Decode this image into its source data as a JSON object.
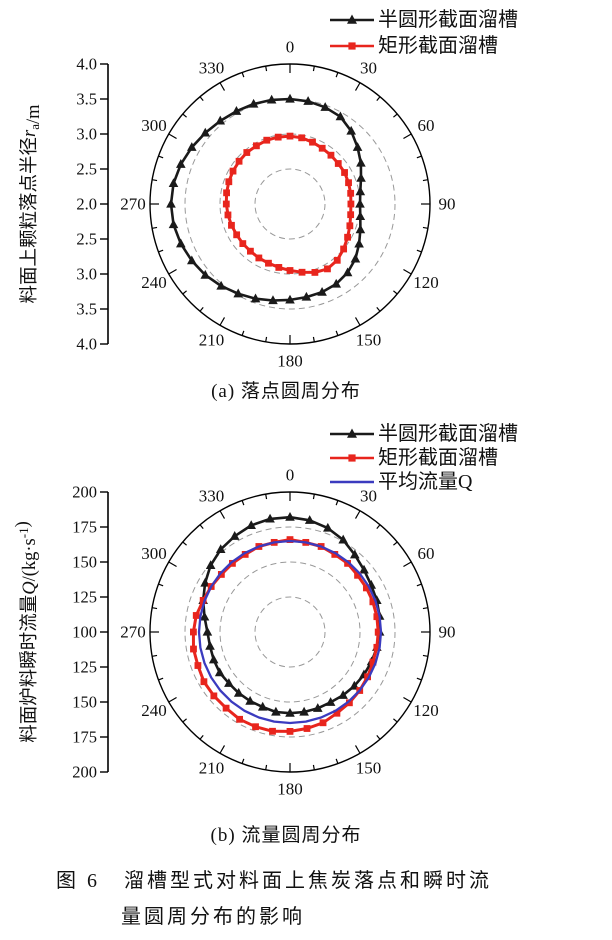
{
  "figure": {
    "label": "图 6",
    "line1": "溜槽型式对料面上焦炭落点和瞬时流",
    "line2": "量圆周分布的影响"
  },
  "colors": {
    "black": "#1a1a1a",
    "red": "#e8251d",
    "blue": "#3b3bbf",
    "grid": "#999999",
    "axis": "#000000"
  },
  "chart_data": [
    {
      "type": "polar-line",
      "caption": "(a) 落点圆周分布",
      "axis_label_parts": [
        {
          "t": "料面上颗粒落点半径"
        },
        {
          "t": "r",
          "italic": true
        },
        {
          "t": "a",
          "sub": true
        },
        {
          "t": "/m"
        }
      ],
      "r_center": 2.0,
      "r_max": 4.0,
      "r_tick_step": 0.5,
      "radial_tick_labels": [
        "4.0",
        "3.5",
        "3.0",
        "2.5",
        "2.0",
        "2.5",
        "3.0",
        "3.5",
        "4.0"
      ],
      "grid_values": [
        2.5,
        3.0,
        3.5
      ],
      "angle_labels": [
        "0",
        "30",
        "60",
        "90",
        "120",
        "150",
        "180",
        "210",
        "240",
        "270",
        "300",
        "330"
      ],
      "angle_major_step": 30,
      "angle_minor_step": 10,
      "legend": [
        {
          "name": "半圆形截面溜槽",
          "color": "black",
          "marker": "triangle"
        },
        {
          "name": "矩形截面溜槽",
          "color": "red",
          "marker": "square"
        }
      ],
      "series": [
        {
          "name": "半圆形截面溜槽",
          "color": "black",
          "marker": "triangle",
          "values": [
            3.5,
            3.49,
            3.47,
            3.44,
            3.36,
            3.26,
            3.17,
            3.08,
            3.02,
            3.0,
            3.02,
            3.07,
            3.14,
            3.22,
            3.28,
            3.32,
            3.34,
            3.35,
            3.37,
            3.4,
            3.44,
            3.48,
            3.53,
            3.58,
            3.62,
            3.66,
            3.69,
            3.7,
            3.69,
            3.66,
            3.62,
            3.58,
            3.55,
            3.53,
            3.52,
            3.51
          ]
        },
        {
          "name": "矩形截面溜槽",
          "color": "red",
          "marker": "square",
          "values": [
            2.97,
            2.96,
            2.94,
            2.92,
            2.91,
            2.9,
            2.9,
            2.89,
            2.88,
            2.87,
            2.88,
            2.91,
            2.95,
            3.0,
            3.05,
            3.07,
            3.04,
            2.99,
            2.95,
            2.92,
            2.9,
            2.89,
            2.88,
            2.88,
            2.88,
            2.89,
            2.9,
            2.91,
            2.92,
            2.93,
            2.94,
            2.95,
            2.96,
            2.96,
            2.97,
            2.97
          ]
        }
      ]
    },
    {
      "type": "polar-line",
      "caption": "(b) 流量圆周分布",
      "axis_label_parts": [
        {
          "t": "料面炉料瞬时流量"
        },
        {
          "t": "Q",
          "italic": true
        },
        {
          "t": "/(kg·s"
        },
        {
          "t": "-1",
          "sup": true
        },
        {
          "t": ")"
        }
      ],
      "r_center": 100,
      "r_max": 200,
      "r_tick_step": 25,
      "radial_tick_labels": [
        "200",
        "175",
        "150",
        "125",
        "100",
        "125",
        "150",
        "175",
        "200"
      ],
      "grid_values": [
        125,
        150,
        175
      ],
      "angle_labels": [
        "0",
        "30",
        "60",
        "90",
        "120",
        "150",
        "180",
        "210",
        "240",
        "270",
        "300",
        "330"
      ],
      "angle_major_step": 30,
      "angle_minor_step": 10,
      "legend": [
        {
          "name": "半圆形截面溜槽",
          "color": "black",
          "marker": "triangle"
        },
        {
          "name": "矩形截面溜槽",
          "color": "red",
          "marker": "square"
        },
        {
          "name": "平均流量Q",
          "color": "blue",
          "marker": "none"
        }
      ],
      "series": [
        {
          "name": "半圆形截面溜槽",
          "color": "black",
          "marker": "triangle",
          "values": [
            182,
            181,
            179,
            176,
            172,
            169,
            167,
            166,
            165,
            164,
            163,
            162,
            161,
            160,
            159,
            158,
            158,
            158,
            158,
            158,
            157,
            157,
            157,
            157,
            158,
            158,
            158,
            159,
            162,
            166,
            170,
            174,
            177,
            179,
            181,
            182
          ]
        },
        {
          "name": "矩形截面溜槽",
          "color": "red",
          "marker": "square",
          "values": [
            166,
            165,
            165,
            164,
            164,
            163,
            163,
            163,
            163,
            163,
            163,
            163,
            164,
            165,
            166,
            167,
            169,
            170,
            171,
            172,
            172,
            172,
            171,
            171,
            171,
            170,
            170,
            169,
            168,
            166,
            165,
            164,
            164,
            164,
            165,
            165
          ]
        },
        {
          "name": "平均流量Q",
          "color": "blue",
          "marker": "none",
          "constant": 165
        }
      ]
    }
  ]
}
